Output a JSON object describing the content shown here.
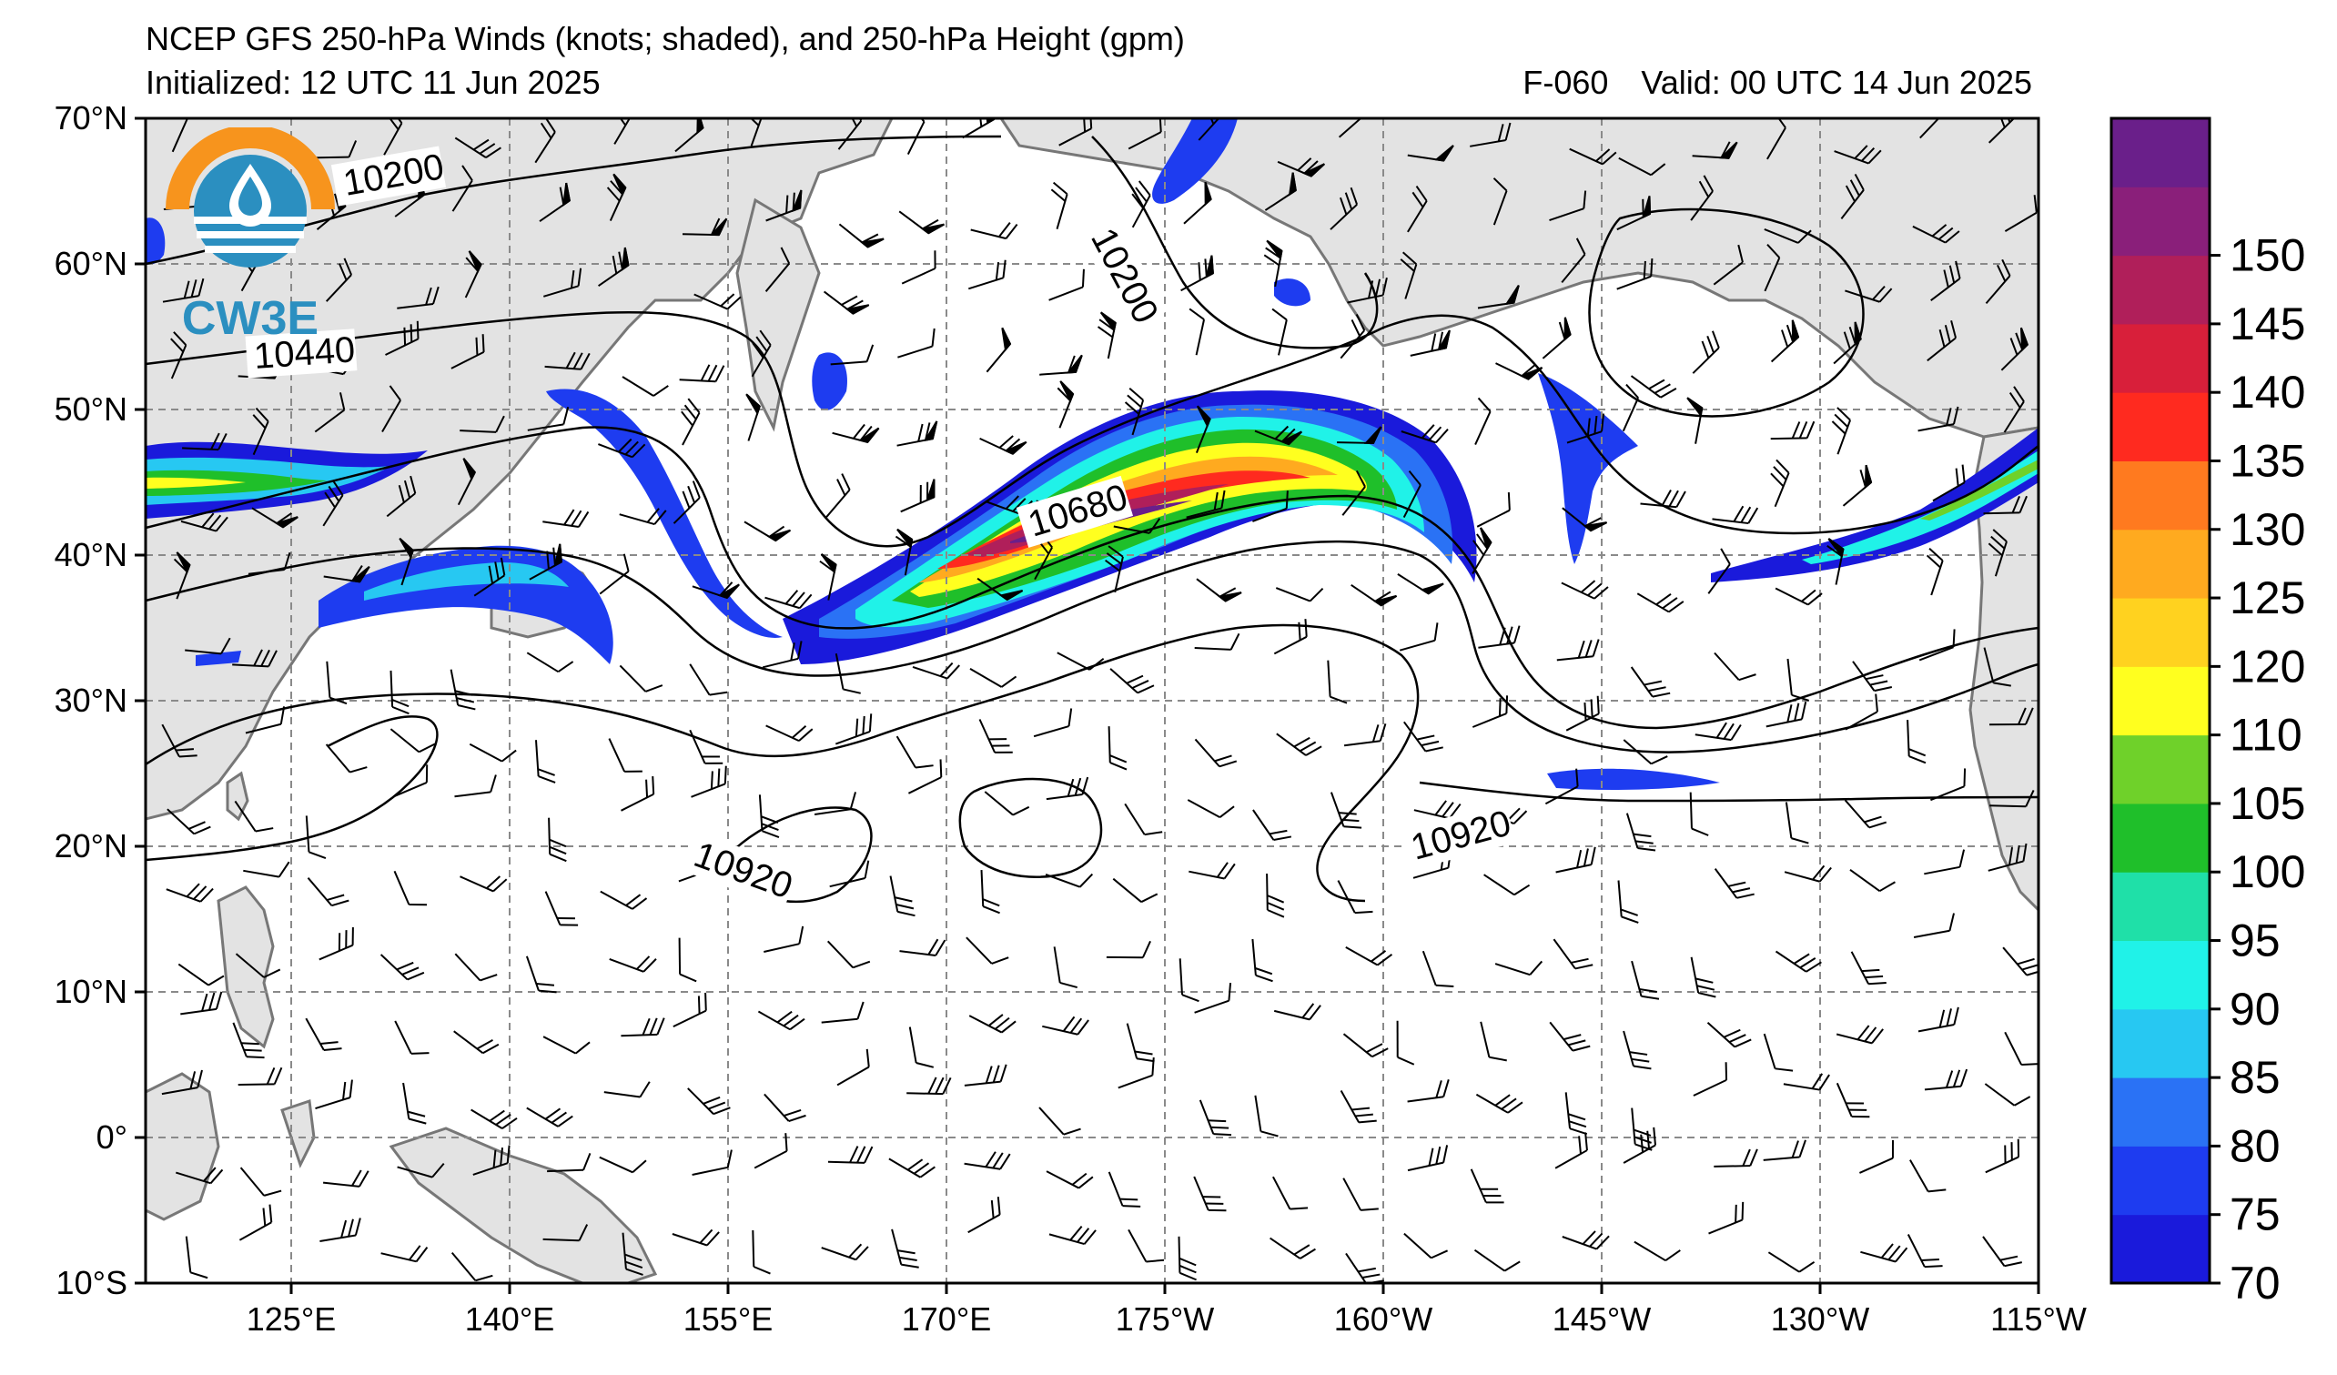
{
  "header": {
    "title": "NCEP GFS 250-hPa Winds (knots; shaded), and 250-hPa Height (gpm)",
    "initialized": "Initialized: 12 UTC 11 Jun 2025",
    "forecast_hour": "F-060",
    "valid": "Valid: 00 UTC 14 Jun 2025"
  },
  "logo": {
    "text": "CW3E"
  },
  "axes": {
    "lat_labels": [
      "70°N",
      "60°N",
      "50°N",
      "40°N",
      "30°N",
      "20°N",
      "10°N",
      "0°",
      "10°S"
    ],
    "lon_labels": [
      "125°E",
      "140°E",
      "155°E",
      "170°E",
      "175°W",
      "160°W",
      "145°W",
      "130°W",
      "115°W"
    ]
  },
  "colorbar": {
    "levels": [
      "70",
      "75",
      "80",
      "85",
      "90",
      "95",
      "100",
      "105",
      "110",
      "120",
      "125",
      "130",
      "135",
      "140",
      "145",
      "150"
    ],
    "colors": [
      "#1a1adb",
      "#1e3cf0",
      "#2a72f5",
      "#27c8f2",
      "#20f2e8",
      "#1fe0a8",
      "#1fbf2a",
      "#6fd12a",
      "#ffff1f",
      "#ffd21f",
      "#ffaa1f",
      "#ff7a1f",
      "#ff2a1f",
      "#d81f3a",
      "#b01f5a",
      "#8a1f7a",
      "#6a1f8a"
    ]
  },
  "contour_labels": {
    "h10200_a": "10200",
    "h10200_b": "10200",
    "h10440": "10440",
    "h10680": "10680",
    "h10920_a": "10920",
    "h10920_b": "10920"
  },
  "colors": {
    "land": "#e3e3e3",
    "coast": "#777777",
    "grid": "#8a8a8a",
    "logo_orange": "#f7941d",
    "logo_blue": "#2b8fc0"
  }
}
